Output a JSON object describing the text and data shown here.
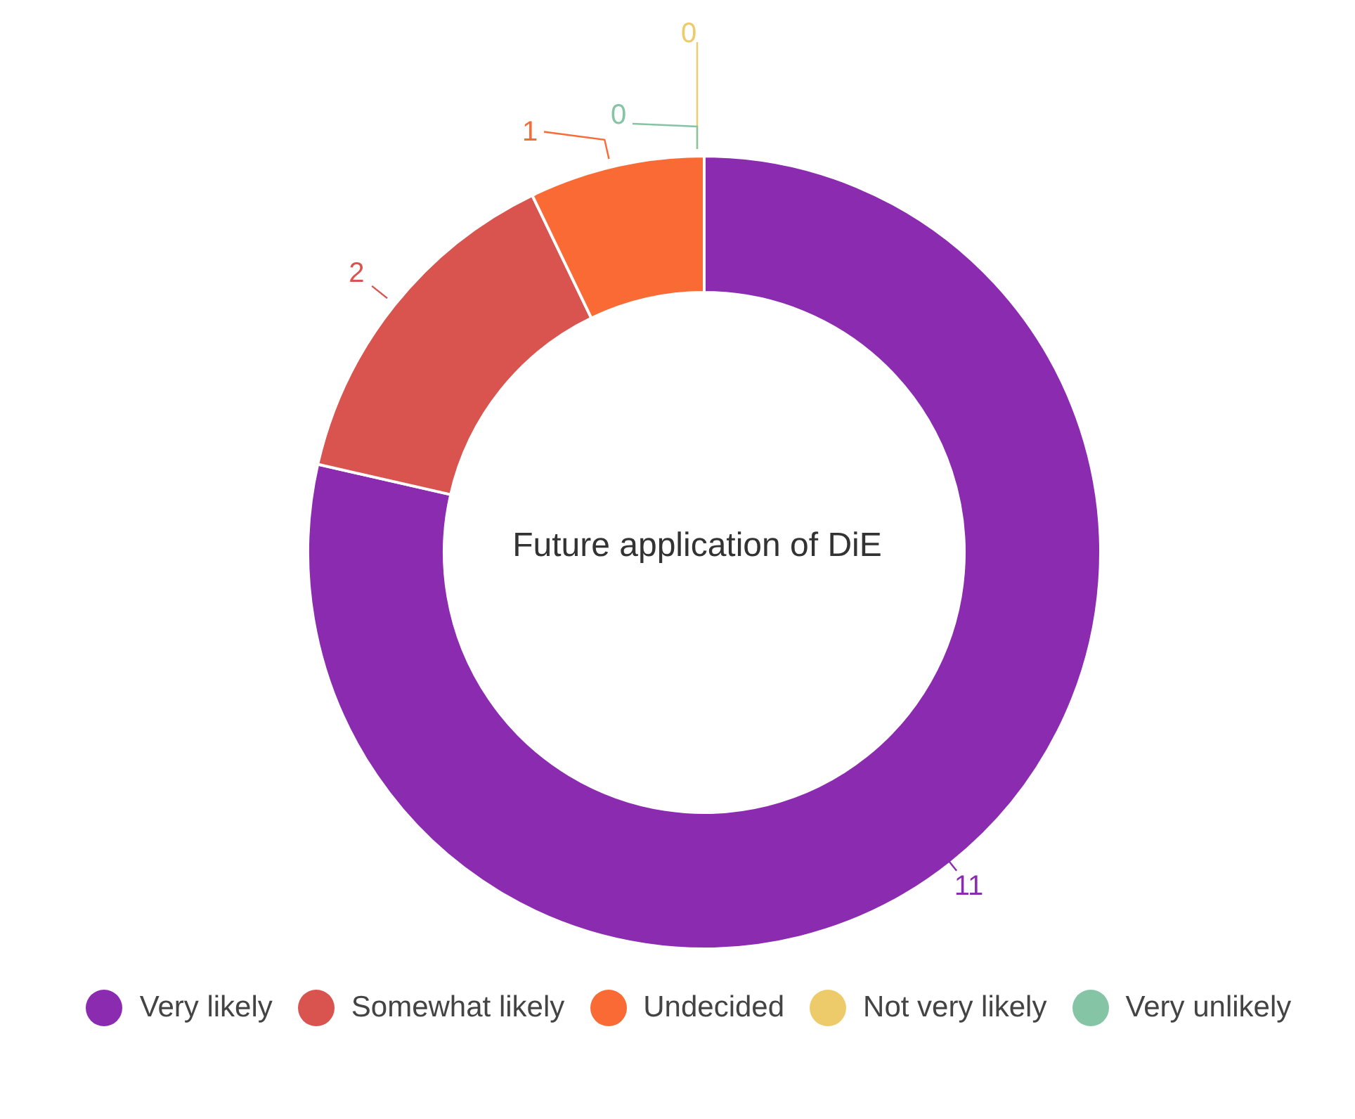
{
  "chart_data": {
    "type": "donut",
    "title": "Future application of DiE",
    "categories": [
      "Very likely",
      "Somewhat likely",
      "Undecided",
      "Not very likely",
      "Very unlikely"
    ],
    "values": [
      11,
      2,
      1,
      0,
      0
    ],
    "colors": [
      "#8a2bb0",
      "#d9534f",
      "#f96a35",
      "#eecb6a",
      "#86c4a6"
    ],
    "value_labels": [
      "11",
      "2",
      "1",
      "0",
      "0"
    ],
    "legend": "bottom"
  }
}
